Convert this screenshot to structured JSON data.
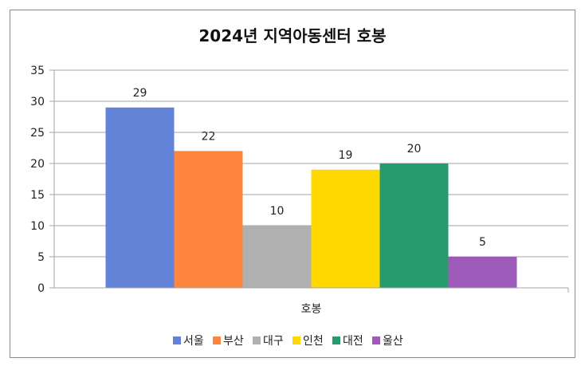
{
  "chart_data": {
    "type": "bar",
    "title": "2024년 지역아동센터 호봉",
    "categories": [
      "호봉"
    ],
    "series": [
      {
        "name": "서울",
        "values": [
          29
        ],
        "color": "#6283d8"
      },
      {
        "name": "부산",
        "values": [
          22
        ],
        "color": "#fd853d"
      },
      {
        "name": "대구",
        "values": [
          10
        ],
        "color": "#b0b0b0"
      },
      {
        "name": "인천",
        "values": [
          19
        ],
        "color": "#ffd800"
      },
      {
        "name": "대전",
        "values": [
          20
        ],
        "color": "#269b6e"
      },
      {
        "name": "울산",
        "values": [
          5
        ],
        "color": "#9d5ab8"
      }
    ],
    "ylim": [
      0,
      35
    ],
    "yticks": [
      0,
      5,
      10,
      15,
      20,
      25,
      30,
      35
    ],
    "grid": true,
    "legend": "bottom",
    "data_labels": true
  }
}
